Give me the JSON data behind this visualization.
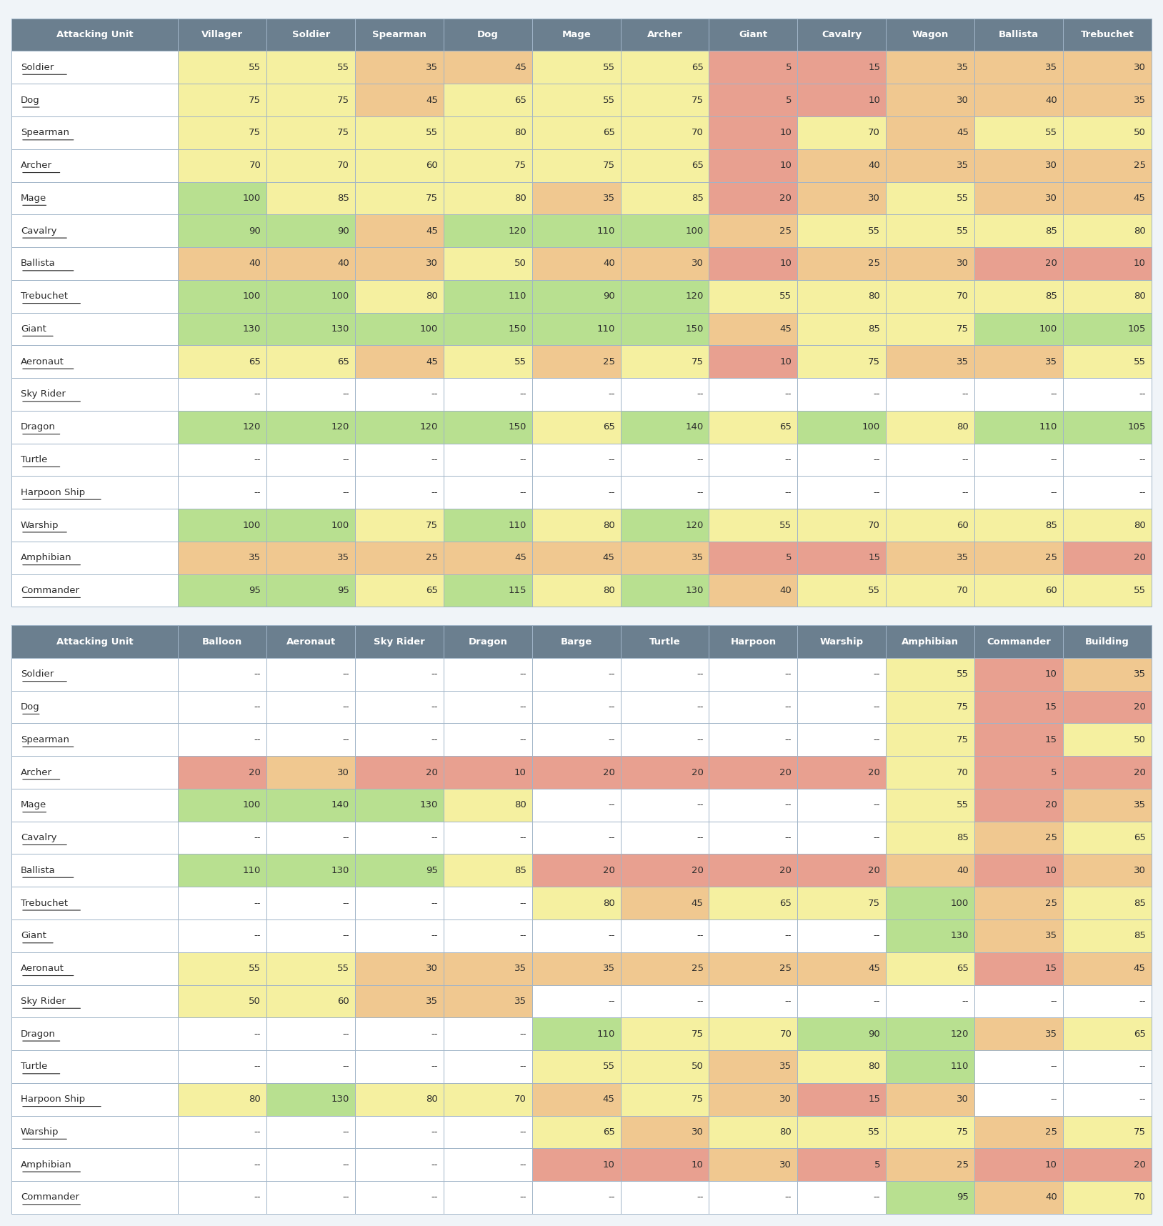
{
  "title1_rows": [
    "Attacking Unit",
    "Villager",
    "Soldier",
    "Spearman",
    "Dog",
    "Mage",
    "Archer",
    "Giant",
    "Cavalry",
    "Wagon",
    "Ballista",
    "Trebuchet"
  ],
  "title2_rows": [
    "Attacking Unit",
    "Balloon",
    "Aeronaut",
    "Sky Rider",
    "Dragon",
    "Barge",
    "Turtle",
    "Harpoon",
    "Warship",
    "Amphibian",
    "Commander",
    "Building"
  ],
  "rows1": [
    {
      "unit": "Soldier",
      "vals": [
        55,
        55,
        35,
        45,
        55,
        65,
        5,
        15,
        35,
        35,
        30
      ]
    },
    {
      "unit": "Dog",
      "vals": [
        75,
        75,
        45,
        65,
        55,
        75,
        5,
        10,
        30,
        40,
        35
      ]
    },
    {
      "unit": "Spearman",
      "vals": [
        75,
        75,
        55,
        80,
        65,
        70,
        10,
        70,
        45,
        55,
        50
      ]
    },
    {
      "unit": "Archer",
      "vals": [
        70,
        70,
        60,
        75,
        75,
        65,
        10,
        40,
        35,
        30,
        25
      ]
    },
    {
      "unit": "Mage",
      "vals": [
        100,
        85,
        75,
        80,
        35,
        85,
        20,
        30,
        55,
        30,
        45
      ]
    },
    {
      "unit": "Cavalry",
      "vals": [
        90,
        90,
        45,
        120,
        110,
        100,
        25,
        55,
        55,
        85,
        80
      ]
    },
    {
      "unit": "Ballista",
      "vals": [
        40,
        40,
        30,
        50,
        40,
        30,
        10,
        25,
        30,
        20,
        10
      ]
    },
    {
      "unit": "Trebuchet",
      "vals": [
        100,
        100,
        80,
        110,
        90,
        120,
        55,
        80,
        70,
        85,
        80
      ]
    },
    {
      "unit": "Giant",
      "vals": [
        130,
        130,
        100,
        150,
        110,
        150,
        45,
        85,
        75,
        100,
        105
      ]
    },
    {
      "unit": "Aeronaut",
      "vals": [
        65,
        65,
        45,
        55,
        25,
        75,
        10,
        75,
        35,
        35,
        55
      ]
    },
    {
      "unit": "Sky Rider",
      "vals": [
        null,
        null,
        null,
        null,
        null,
        null,
        null,
        null,
        null,
        null,
        null
      ]
    },
    {
      "unit": "Dragon",
      "vals": [
        120,
        120,
        120,
        150,
        65,
        140,
        65,
        100,
        80,
        110,
        105
      ]
    },
    {
      "unit": "Turtle",
      "vals": [
        null,
        null,
        null,
        null,
        null,
        null,
        null,
        null,
        null,
        null,
        null
      ]
    },
    {
      "unit": "Harpoon Ship",
      "vals": [
        null,
        null,
        null,
        null,
        null,
        null,
        null,
        null,
        null,
        null,
        null
      ]
    },
    {
      "unit": "Warship",
      "vals": [
        100,
        100,
        75,
        110,
        80,
        120,
        55,
        70,
        60,
        85,
        80
      ]
    },
    {
      "unit": "Amphibian",
      "vals": [
        35,
        35,
        25,
        45,
        45,
        35,
        5,
        15,
        35,
        25,
        20
      ]
    },
    {
      "unit": "Commander",
      "vals": [
        95,
        95,
        65,
        115,
        80,
        130,
        40,
        55,
        70,
        60,
        55
      ]
    }
  ],
  "rows2": [
    {
      "unit": "Soldier",
      "vals": [
        null,
        null,
        null,
        null,
        null,
        null,
        null,
        null,
        55,
        10,
        35
      ]
    },
    {
      "unit": "Dog",
      "vals": [
        null,
        null,
        null,
        null,
        null,
        null,
        null,
        null,
        75,
        15,
        20
      ]
    },
    {
      "unit": "Spearman",
      "vals": [
        null,
        null,
        null,
        null,
        null,
        null,
        null,
        null,
        75,
        15,
        50
      ]
    },
    {
      "unit": "Archer",
      "vals": [
        20,
        30,
        20,
        10,
        20,
        20,
        20,
        20,
        70,
        5,
        20
      ]
    },
    {
      "unit": "Mage",
      "vals": [
        100,
        140,
        130,
        80,
        null,
        null,
        null,
        null,
        55,
        20,
        35
      ]
    },
    {
      "unit": "Cavalry",
      "vals": [
        null,
        null,
        null,
        null,
        null,
        null,
        null,
        null,
        85,
        25,
        65
      ]
    },
    {
      "unit": "Ballista",
      "vals": [
        110,
        130,
        95,
        85,
        20,
        20,
        20,
        20,
        40,
        10,
        30
      ]
    },
    {
      "unit": "Trebuchet",
      "vals": [
        null,
        null,
        null,
        null,
        80,
        45,
        65,
        75,
        100,
        25,
        85
      ]
    },
    {
      "unit": "Giant",
      "vals": [
        null,
        null,
        null,
        null,
        null,
        null,
        null,
        null,
        130,
        35,
        85
      ]
    },
    {
      "unit": "Aeronaut",
      "vals": [
        55,
        55,
        30,
        35,
        35,
        25,
        25,
        45,
        65,
        15,
        45
      ]
    },
    {
      "unit": "Sky Rider",
      "vals": [
        50,
        60,
        35,
        35,
        null,
        null,
        null,
        null,
        null,
        null,
        null
      ]
    },
    {
      "unit": "Dragon",
      "vals": [
        null,
        null,
        null,
        null,
        110,
        75,
        70,
        90,
        120,
        35,
        65
      ]
    },
    {
      "unit": "Turtle",
      "vals": [
        null,
        null,
        null,
        null,
        55,
        50,
        35,
        80,
        110,
        null,
        null
      ]
    },
    {
      "unit": "Harpoon Ship",
      "vals": [
        80,
        130,
        80,
        70,
        45,
        75,
        30,
        15,
        30,
        null,
        null
      ]
    },
    {
      "unit": "Warship",
      "vals": [
        null,
        null,
        null,
        null,
        65,
        30,
        80,
        55,
        75,
        25,
        75
      ]
    },
    {
      "unit": "Amphibian",
      "vals": [
        null,
        null,
        null,
        null,
        10,
        10,
        30,
        5,
        25,
        10,
        20
      ]
    },
    {
      "unit": "Commander",
      "vals": [
        null,
        null,
        null,
        null,
        null,
        null,
        null,
        null,
        95,
        40,
        70
      ]
    }
  ],
  "header_bg": "#6b7f8f",
  "header_fg": "#ffffff",
  "row_label_bg": "#ffffff",
  "row_label_fg": "#2c2c2c",
  "border_color": "#a0b4c8",
  "colors": {
    "red": "#e8a090",
    "orange": "#f0c890",
    "yellow": "#f5f0a0",
    "green": "#b8e090",
    "white": "#ffffff"
  },
  "thresholds": {
    "red_max": 20,
    "orange_max": 45,
    "yellow_max": 85,
    "green_min": 90
  }
}
